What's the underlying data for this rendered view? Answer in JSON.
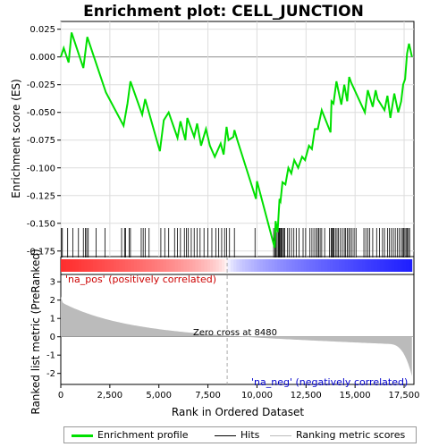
{
  "chart_data": {
    "type": "line",
    "title": "Enrichment plot: CELL_JUNCTION",
    "ylabel_top": "Enrichment score (ES)",
    "ylabel_bottom": "Ranked list metric (PreRanked)",
    "xlabel": "Rank in Ordered Dataset",
    "x_ticks": [
      0,
      2500,
      5000,
      7500,
      10000,
      12500,
      15000,
      17500
    ],
    "x_tick_labels": [
      "0",
      "2,500",
      "5,000",
      "7,500",
      "10,000",
      "12,500",
      "15,000",
      "17,500"
    ],
    "es_yticks": [
      0.025,
      0.0,
      -0.025,
      -0.05,
      -0.075,
      -0.1,
      -0.125,
      -0.15,
      -0.175
    ],
    "es_ytick_labels": [
      "0.025",
      "0.000",
      "-0.025",
      "-0.050",
      "-0.075",
      "-0.100",
      "-0.125",
      "-0.150",
      "-0.175"
    ],
    "es_ylim": [
      -0.18,
      0.032
    ],
    "metric_yticks": [
      3,
      2,
      1,
      0,
      -1,
      -2
    ],
    "metric_ylim": [
      -2.6,
      3.4
    ],
    "xlim": [
      0,
      18000
    ],
    "n_genes": 17900,
    "zero_cross_rank": 8480,
    "zero_cross_label": "Zero cross at 8480",
    "pos_label": "'na_pos' (positively correlated)",
    "neg_label": "'na_neg' (negatively correlated)",
    "enrichment_profile": {
      "name": "Enrichment profile",
      "x": [
        0,
        150,
        400,
        550,
        1150,
        1350,
        2300,
        3200,
        3400,
        3550,
        4150,
        4300,
        5050,
        5250,
        5500,
        5950,
        6100,
        6350,
        6450,
        6800,
        6950,
        7150,
        7400,
        7600,
        7850,
        8150,
        8300,
        8450,
        8550,
        8800,
        8850,
        9000,
        9950,
        10000,
        10900,
        10950,
        11050,
        11150,
        11200,
        11300,
        11450,
        11600,
        11750,
        11900,
        12100,
        12300,
        12450,
        12650,
        12800,
        12950,
        13100,
        13300,
        13750,
        13800,
        13900,
        14050,
        14300,
        14450,
        14600,
        14700,
        14800,
        15500,
        15650,
        15900,
        16050,
        16150,
        16500,
        16650,
        16800,
        17000,
        17200,
        17350,
        17450,
        17550,
        17650,
        17750,
        17900
      ],
      "y": [
        0.0,
        0.008,
        -0.005,
        0.022,
        -0.01,
        0.018,
        -0.032,
        -0.062,
        -0.042,
        -0.022,
        -0.052,
        -0.038,
        -0.085,
        -0.057,
        -0.05,
        -0.073,
        -0.058,
        -0.075,
        -0.055,
        -0.072,
        -0.06,
        -0.08,
        -0.065,
        -0.08,
        -0.09,
        -0.078,
        -0.088,
        -0.063,
        -0.075,
        -0.072,
        -0.066,
        -0.075,
        -0.128,
        -0.112,
        -0.172,
        -0.148,
        -0.158,
        -0.128,
        -0.13,
        -0.113,
        -0.115,
        -0.1,
        -0.105,
        -0.093,
        -0.1,
        -0.09,
        -0.093,
        -0.08,
        -0.083,
        -0.065,
        -0.065,
        -0.048,
        -0.068,
        -0.04,
        -0.042,
        -0.022,
        -0.043,
        -0.025,
        -0.04,
        -0.018,
        -0.023,
        -0.05,
        -0.03,
        -0.045,
        -0.03,
        -0.038,
        -0.048,
        -0.035,
        -0.055,
        -0.033,
        -0.05,
        -0.04,
        -0.025,
        -0.02,
        0.003,
        0.012,
        0.0
      ]
    },
    "hits": [
      30,
      80,
      350,
      620,
      900,
      1150,
      1250,
      1320,
      1400,
      1800,
      2250,
      3100,
      3250,
      3300,
      3480,
      3550,
      4100,
      4200,
      4300,
      4500,
      5100,
      5300,
      5500,
      5800,
      5950,
      6100,
      6300,
      6400,
      6500,
      6650,
      6800,
      6950,
      7100,
      7300,
      7500,
      7700,
      7900,
      8050,
      8200,
      8350,
      8450,
      8600,
      8850,
      9900,
      10850,
      10920,
      10960,
      11020,
      11080,
      11120,
      11160,
      11210,
      11250,
      11300,
      11360,
      11420,
      11560,
      11650,
      11760,
      11880,
      12000,
      12150,
      12350,
      12480,
      12700,
      12800,
      12900,
      13000,
      13080,
      13150,
      13220,
      13300,
      13450,
      13700,
      13780,
      13820,
      13880,
      13920,
      14000,
      14080,
      14150,
      14250,
      14350,
      14450,
      14520,
      14600,
      14680,
      14760,
      14850,
      14950,
      15050,
      15450,
      15550,
      15650,
      15750,
      15900,
      16100,
      16250,
      16400,
      16500,
      16650,
      16750,
      16850,
      16950,
      17050,
      17150,
      17250,
      17350,
      17420,
      17480,
      17540,
      17600,
      17660,
      17720,
      17780
    ],
    "legend": [
      "Enrichment profile",
      "Hits",
      "Ranking metric scores"
    ],
    "colors": {
      "profile": "#00e000",
      "hits": "#000000",
      "metric_fill": "#bbbbbb",
      "zero_line": "#aaaaaa",
      "pos_text": "#cc0000",
      "neg_text": "#0000cc"
    }
  }
}
